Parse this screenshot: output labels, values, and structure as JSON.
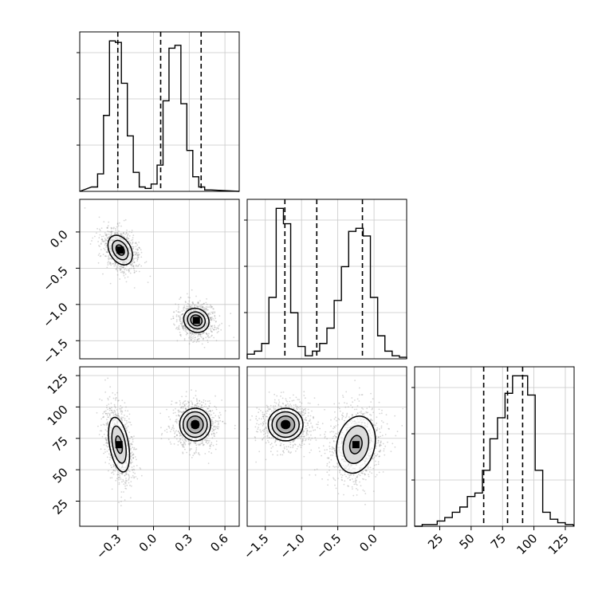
{
  "chart_data": {
    "type": "corner",
    "variables": [
      {
        "range": [
          -0.62,
          0.72
        ],
        "ticks": [
          -0.3,
          0.0,
          0.3,
          0.6
        ],
        "tick_labels": [
          "−0.3",
          "0.0",
          "0.3",
          "0.6"
        ]
      },
      {
        "range": [
          -1.75,
          0.45
        ],
        "ticks": [
          -1.5,
          -1.0,
          -0.5,
          0.0
        ],
        "tick_labels": [
          "−1.5",
          "−1.0",
          "−0.5",
          "0.0"
        ]
      },
      {
        "range": [
          5,
          132
        ],
        "ticks": [
          25,
          50,
          75,
          100,
          125
        ],
        "tick_labels": [
          "25",
          "50",
          "75",
          "100",
          "125"
        ]
      }
    ],
    "histograms": [
      {
        "bin_start": -0.52,
        "bin_width": 0.05,
        "counts": [
          3,
          12,
          52,
          103,
          102,
          74,
          38,
          13,
          3,
          2,
          5,
          18,
          62,
          98,
          100,
          60,
          28,
          10,
          3,
          1
        ],
        "quantile_lines": [
          -0.3,
          0.06,
          0.4
        ]
      },
      {
        "bin_start": -1.75,
        "bin_width": 0.1,
        "counts": [
          3,
          5,
          10,
          40,
          98,
          88,
          30,
          8,
          2,
          5,
          10,
          20,
          38,
          60,
          83,
          85,
          80,
          40,
          15,
          5,
          2,
          1
        ],
        "quantile_lines": [
          -1.23,
          -0.79,
          -0.16
        ]
      },
      {
        "bin_start": 5,
        "bin_width": 6,
        "counts": [
          0,
          1,
          1,
          3,
          5,
          8,
          11,
          17,
          19,
          32,
          50,
          62,
          76,
          86,
          86,
          75,
          32,
          8,
          4,
          2,
          1
        ],
        "quantile_lines": [
          60,
          79,
          91
        ]
      }
    ],
    "scatter_panels": [
      {
        "x_var": 0,
        "y_var": 1,
        "clusters": [
          {
            "center": [
              -0.28,
              -0.25
            ],
            "spread": [
              0.09,
              0.22
            ],
            "rotation_deg": 30,
            "levels": [
              1.0,
              0.65,
              0.35
            ]
          },
          {
            "center": [
              0.36,
              -1.22
            ],
            "spread": [
              0.11,
              0.16
            ],
            "rotation_deg": -35,
            "levels": [
              1.0,
              0.7,
              0.45,
              0.2
            ]
          }
        ]
      },
      {
        "x_var": 0,
        "y_var": 2,
        "clusters": [
          {
            "center": [
              -0.29,
              70
            ],
            "spread": [
              0.08,
              22
            ],
            "rotation_deg": 10,
            "levels": [
              1.0,
              0.68,
              0.32
            ]
          },
          {
            "center": [
              0.35,
              86
            ],
            "spread": [
              0.13,
              13
            ],
            "rotation_deg": 0,
            "levels": [
              1.0,
              0.78,
              0.52,
              0.25
            ]
          }
        ]
      },
      {
        "x_var": 1,
        "y_var": 2,
        "clusters": [
          {
            "center": [
              -1.22,
              86
            ],
            "spread": [
              0.24,
              13
            ],
            "rotation_deg": 0,
            "levels": [
              1.0,
              0.78,
              0.52,
              0.25
            ]
          },
          {
            "center": [
              -0.25,
              70
            ],
            "spread": [
              0.26,
              23
            ],
            "rotation_deg": -12,
            "levels": [
              1.0,
              0.66,
              0.32
            ]
          }
        ]
      }
    ],
    "grid": true,
    "colors": {
      "line": "#000000",
      "grid": "#c8c8c8",
      "points": "#8a8a8a"
    }
  }
}
